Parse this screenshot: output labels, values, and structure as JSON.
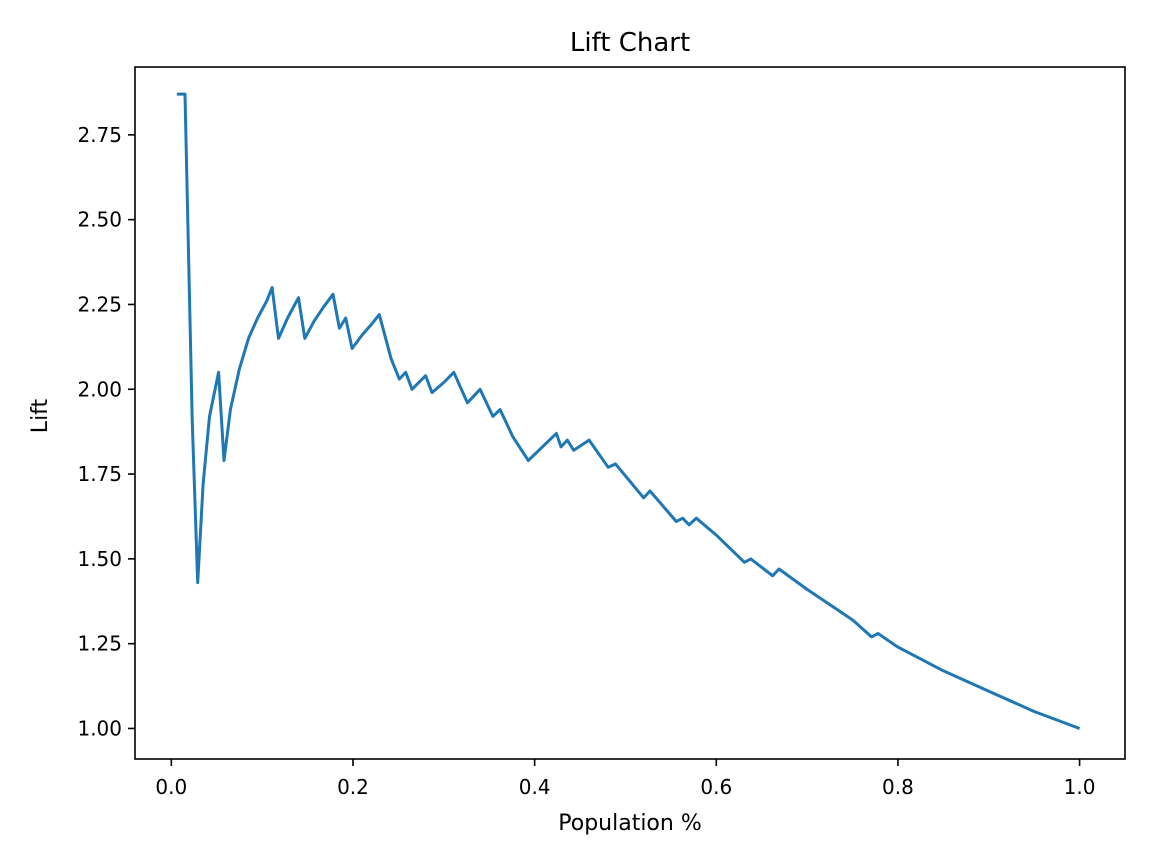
{
  "chart_data": {
    "type": "line",
    "title": "Lift Chart",
    "xlabel": "Population %",
    "ylabel": "Lift",
    "xlim": [
      -0.04,
      1.05
    ],
    "ylim": [
      0.91,
      2.95
    ],
    "xticks": [
      0.0,
      0.2,
      0.4,
      0.6,
      0.8,
      1.0
    ],
    "xtick_labels": [
      "0.0",
      "0.2",
      "0.4",
      "0.6",
      "0.8",
      "1.0"
    ],
    "yticks": [
      1.0,
      1.25,
      1.5,
      1.75,
      2.0,
      2.25,
      2.5,
      2.75
    ],
    "ytick_labels": [
      "1.00",
      "1.25",
      "1.50",
      "1.75",
      "2.00",
      "2.25",
      "2.50",
      "2.75"
    ],
    "grid": false,
    "line_color": "#1f77b4",
    "series": [
      {
        "x": [
          0.006,
          0.014,
          0.015,
          0.023,
          0.029,
          0.035,
          0.042,
          0.052,
          0.058,
          0.065,
          0.075,
          0.085,
          0.095,
          0.105,
          0.111,
          0.118,
          0.128,
          0.14,
          0.147,
          0.157,
          0.167,
          0.178,
          0.185,
          0.192,
          0.199,
          0.21,
          0.22,
          0.229,
          0.242,
          0.251,
          0.258,
          0.265,
          0.28,
          0.287,
          0.3,
          0.311,
          0.326,
          0.34,
          0.354,
          0.362,
          0.376,
          0.393,
          0.424,
          0.429,
          0.436,
          0.443,
          0.46,
          0.481,
          0.489,
          0.52,
          0.527,
          0.556,
          0.563,
          0.57,
          0.578,
          0.6,
          0.631,
          0.638,
          0.662,
          0.669,
          0.7,
          0.75,
          0.771,
          0.778,
          0.8,
          0.85,
          0.9,
          0.95,
          1.0
        ],
        "y": [
          2.87,
          2.87,
          2.87,
          1.91,
          1.43,
          1.72,
          1.92,
          2.05,
          1.79,
          1.94,
          2.06,
          2.15,
          2.21,
          2.26,
          2.3,
          2.15,
          2.21,
          2.27,
          2.15,
          2.2,
          2.24,
          2.28,
          2.18,
          2.21,
          2.12,
          2.16,
          2.19,
          2.22,
          2.09,
          2.03,
          2.05,
          2.0,
          2.04,
          1.99,
          2.02,
          2.05,
          1.96,
          2.0,
          1.92,
          1.94,
          1.86,
          1.79,
          1.87,
          1.83,
          1.85,
          1.82,
          1.85,
          1.77,
          1.78,
          1.68,
          1.7,
          1.61,
          1.62,
          1.6,
          1.62,
          1.57,
          1.49,
          1.5,
          1.45,
          1.47,
          1.41,
          1.32,
          1.27,
          1.28,
          1.24,
          1.17,
          1.11,
          1.05,
          1.0
        ]
      }
    ]
  }
}
